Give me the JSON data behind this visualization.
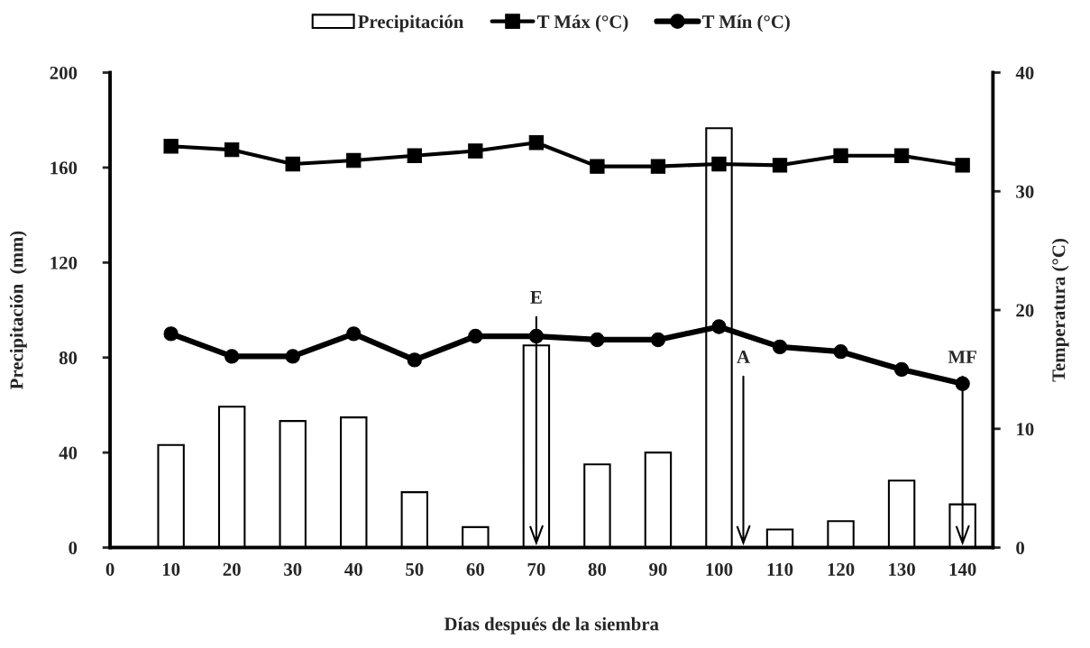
{
  "chart_data": {
    "type": "bar",
    "x": [
      10,
      20,
      30,
      40,
      50,
      60,
      70,
      80,
      90,
      100,
      110,
      120,
      130,
      140
    ],
    "series": [
      {
        "name": "Precipitación",
        "color": "#ffffff",
        "values": [
          43.2,
          59.3,
          53.3,
          54.8,
          23.3,
          8.6,
          85.1,
          35.0,
          40.0,
          176.6,
          7.6,
          11.1,
          28.2,
          18.2
        ]
      },
      {
        "name": "T Máx (°C)",
        "type": "line",
        "axis": "y2",
        "color": "#000000",
        "marker": "square",
        "values": [
          33.8,
          33.5,
          32.3,
          32.6,
          33.0,
          33.4,
          34.1,
          32.1,
          32.1,
          32.3,
          32.2,
          33.0,
          33.0,
          32.2
        ]
      },
      {
        "name": "T Mín (°C)",
        "type": "line",
        "axis": "y2",
        "color": "#000000",
        "marker": "circle",
        "values": [
          18.0,
          16.1,
          16.1,
          18.0,
          15.8,
          17.8,
          17.8,
          17.5,
          17.5,
          18.6,
          16.9,
          16.5,
          15.0,
          13.8
        ]
      }
    ],
    "xlabel": "Días después de la siembra",
    "ylabel": "Precipitación  (mm)",
    "y2label": "Temperatura (°C)",
    "xlim": [
      0,
      145
    ],
    "xticks": [
      0,
      10,
      20,
      30,
      40,
      50,
      60,
      70,
      80,
      90,
      100,
      110,
      120,
      130,
      140
    ],
    "ylim": [
      0,
      200
    ],
    "yticks": [
      0,
      40,
      80,
      120,
      160,
      200
    ],
    "y2lim": [
      0,
      40
    ],
    "y2ticks": [
      0,
      10,
      20,
      30,
      40
    ],
    "ref_lines": [
      {
        "axis": "x",
        "value": 70,
        "label": "E"
      },
      {
        "axis": "x",
        "value": 104,
        "label": "A"
      },
      {
        "axis": "x",
        "value": 140,
        "label": "MF"
      }
    ],
    "legend": "top",
    "grid": false,
    "line_style": "solid"
  }
}
